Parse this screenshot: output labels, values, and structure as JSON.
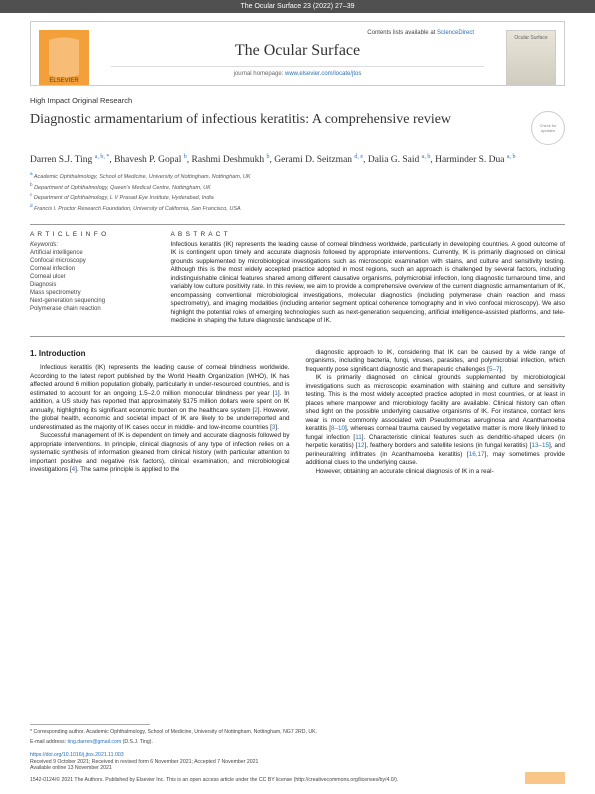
{
  "topbar": "The Ocular Surface 23 (2022) 27–39",
  "header": {
    "contents_prefix": "Contents lists available at ",
    "contents_link": "ScienceDirect",
    "journal_title": "The Ocular Surface",
    "homepage_prefix": "journal homepage: ",
    "homepage_link": "www.elsevier.com/locate/jtos",
    "cover_text": "Ocular Surface"
  },
  "article": {
    "type": "High Impact Original Research",
    "title": "Diagnostic armamentarium of infectious keratitis: A comprehensive review",
    "crossmark": "Check for updates"
  },
  "authors_html": "Darren S.J. Ting <sup>a, b, *</sup>, Bhavesh P. Gopal <sup>b</sup>, Rashmi Deshmukh <sup>b</sup>, Gerami D. Seitzman <sup>d, e</sup>, Dalia G. Said <sup>a, b</sup>, Harminder S. Dua <sup>a, b</sup>",
  "affiliations": [
    "a Academic Ophthalmology, School of Medicine, University of Nottingham, Nottingham, UK",
    "b Department of Ophthalmology, Queen's Medical Centre, Nottingham, UK",
    "c Department of Ophthalmology, L V Prasad Eye Institute, Hyderabad, India",
    "d Francis I. Proctor Research Foundation, University of California, San Francisco, USA"
  ],
  "keywords_head": "A R T I C L E  I N F O",
  "keywords_label": "Keywords:",
  "keywords": [
    "Artificial intelligence",
    "Confocal microscopy",
    "Corneal infection",
    "Corneal ulcer",
    "Diagnosis",
    "Mass spectrometry",
    "Next-generation sequencing",
    "Polymerase chain reaction"
  ],
  "abstract_head": "A B S T R A C T",
  "abstract": "Infectious keratitis (IK) represents the leading cause of corneal blindness worldwide, particularly in developing countries. A good outcome of IK is contingent upon timely and accurate diagnosis followed by appropriate interventions. Currently, IK is primarily diagnosed on clinical grounds supplemented by microbiological investigations such as microscopic examination with stains, and culture and sensitivity testing. Although this is the most widely accepted practice adopted in most regions, such an approach is challenged by several factors, including indistinguishable clinical features shared among different causative organisms, polymicrobial infection, long diagnostic turnaround time, and variably low culture positivity rate. In this review, we aim to provide a comprehensive overview of the current diagnostic armamentarium of IK, encompassing conventional microbiological investigations, molecular diagnostics (including polymerase chain reaction and mass spectrometry), and imaging modalities (including anterior segment optical coherence tomography and in vivo confocal microscopy). We also highlight the potential roles of emerging technologies such as next-generation sequencing, artificial intelligence-assisted platforms, and tele-medicine in shaping the future diagnostic landscape of IK.",
  "body": {
    "heading": "1. Introduction",
    "left_paras": [
      "Infectious keratitis (IK) represents the leading cause of corneal blindness worldwide. According to the latest report published by the World Health Organization (WHO), IK has affected around 6 million population globally, particularly in under-resourced countries, and is estimated to account for an ongoing 1.5–2.0 million monocular blindness per year [1]. In addition, a US study has reported that approximately $175 million dollars were spent on IK annually, highlighting its significant economic burden on the healthcare system [2]. However, the global health, economic and societal impact of IK are likely to be underreported and underestimated as the majority of IK cases occur in middle- and low-income countries [3].",
      "Successful management of IK is dependent on timely and accurate diagnosis followed by appropriate interventions. In principle, clinical diagnosis of any type of infection relies on a systematic synthesis of information gleaned from clinical history (with particular attention to important positive and negative risk factors), clinical examination, and microbiological investigations [4]. The same principle is applied to the"
    ],
    "right_paras": [
      "diagnostic approach to IK, considering that IK can be caused by a wide range of organisms, including bacteria, fungi, viruses, parasites, and polymicrobial infection, which frequently pose significant diagnostic and therapeutic challenges [5–7].",
      "IK is primarily diagnosed on clinical grounds supplemented by microbiological investigations such as microscopic examination with staining and culture and sensitivity testing. This is the most widely accepted practice adopted in most countries, or at least in places where manpower and microbiology facility are available. Clinical history can often shed light on the possible underlying causative organisms of IK. For instance, contact lens wear is more commonly associated with Pseudomonas aeruginosa and Acanthamoeba keratitis [8–10], whereas corneal trauma caused by vegetative matter is more likely linked to fungal infection [11]. Characteristic clinical features such as dendritic-shaped ulcers (in herpetic keratitis) [12], feathery borders and satellite lesions (in fungal keratitis) [13–15], and perineural/ring infiltrates (in Acanthamoeba keratitis) [16,17], may sometimes provide additional clues to the underlying cause.",
      "However, obtaining an accurate clinical diagnosis of IK in a real-"
    ]
  },
  "footer": {
    "corr_label": "* Corresponding author. Academic Ophthalmology, School of Medicine, University of Nottingham, Nottingham, NG7 2RD, UK.",
    "email_label": "E-mail address: ",
    "email": "ting.darren@gmail.com",
    "email_suffix": " (D.S.J. Ting).",
    "doi": "https://doi.org/10.1016/j.jtos.2021.11.003",
    "received": "Received 9 October 2021; Received in revised form 6 November 2021; Accepted 7 November 2021",
    "available": "Available online 13 November 2021",
    "copyright": "1542-0124/© 2021 The Authors. Published by Elsevier Inc. This is an open access article under the CC BY license (http://creativecommons.org/licenses/by/4.0/)."
  }
}
